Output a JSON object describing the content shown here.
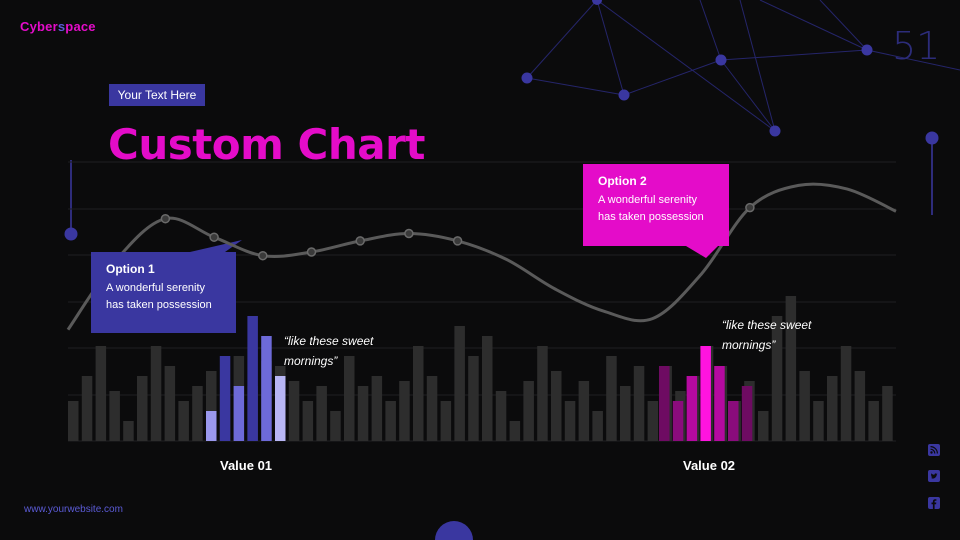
{
  "header": {
    "brand_main": "Cyber",
    "brand_accent": "s",
    "brand_tail": "pace",
    "page_number": "51",
    "tag": "Your Text Here",
    "title": "Custom Chart"
  },
  "callouts": [
    {
      "title": "Option 1",
      "text": "A wonderful serenity has taken possession"
    },
    {
      "title": "Option 2",
      "text": "A wonderful serenity has taken possession"
    }
  ],
  "quotes": [
    {
      "line1": "“like these sweet",
      "line2": "mornings”"
    },
    {
      "line1": "“like these sweet",
      "line2": "mornings”"
    }
  ],
  "value_labels": [
    "Value 01",
    "Value 02"
  ],
  "footer": {
    "website": "www.yourwebsite.com"
  },
  "social_icons": [
    "rss-icon",
    "twitter-icon",
    "facebook-icon"
  ],
  "colors": {
    "background": "#0b0b0c",
    "magenta": "#e40cc9",
    "indigo": "#3a37a0",
    "grey_bar": "#2d2d2d",
    "curve": "#5a5a5a"
  },
  "chart_data": {
    "type": "bar",
    "bar_values": [
      40,
      65,
      95,
      50,
      20,
      65,
      95,
      75,
      40,
      55,
      70,
      45,
      85,
      55,
      80,
      75,
      60,
      40,
      55,
      30,
      85,
      55,
      65,
      40,
      60,
      95,
      65,
      40,
      115,
      85,
      105,
      50,
      20,
      60,
      95,
      70,
      40,
      60,
      30,
      85,
      55,
      75,
      40,
      75,
      50,
      65,
      95,
      75,
      40,
      60,
      30,
      125,
      145,
      70,
      40,
      65,
      95,
      70,
      40,
      55
    ],
    "highlight_blue": {
      "start": 10,
      "values": [
        30,
        85,
        55,
        125,
        105,
        65
      ]
    },
    "highlight_magenta": {
      "start": 43,
      "values": [
        75,
        40,
        65,
        95,
        75,
        40,
        55
      ]
    },
    "curve_values": [
      1.9,
      3.8,
      4.9,
      4.4,
      3.9,
      4.0,
      4.3,
      4.5,
      4.3,
      3.8,
      3.0,
      2.4,
      2.2,
      3.4,
      5.2,
      5.8,
      5.7,
      5.1
    ],
    "curve_markers": [
      2,
      3,
      4,
      5,
      6,
      7,
      8,
      14
    ]
  }
}
